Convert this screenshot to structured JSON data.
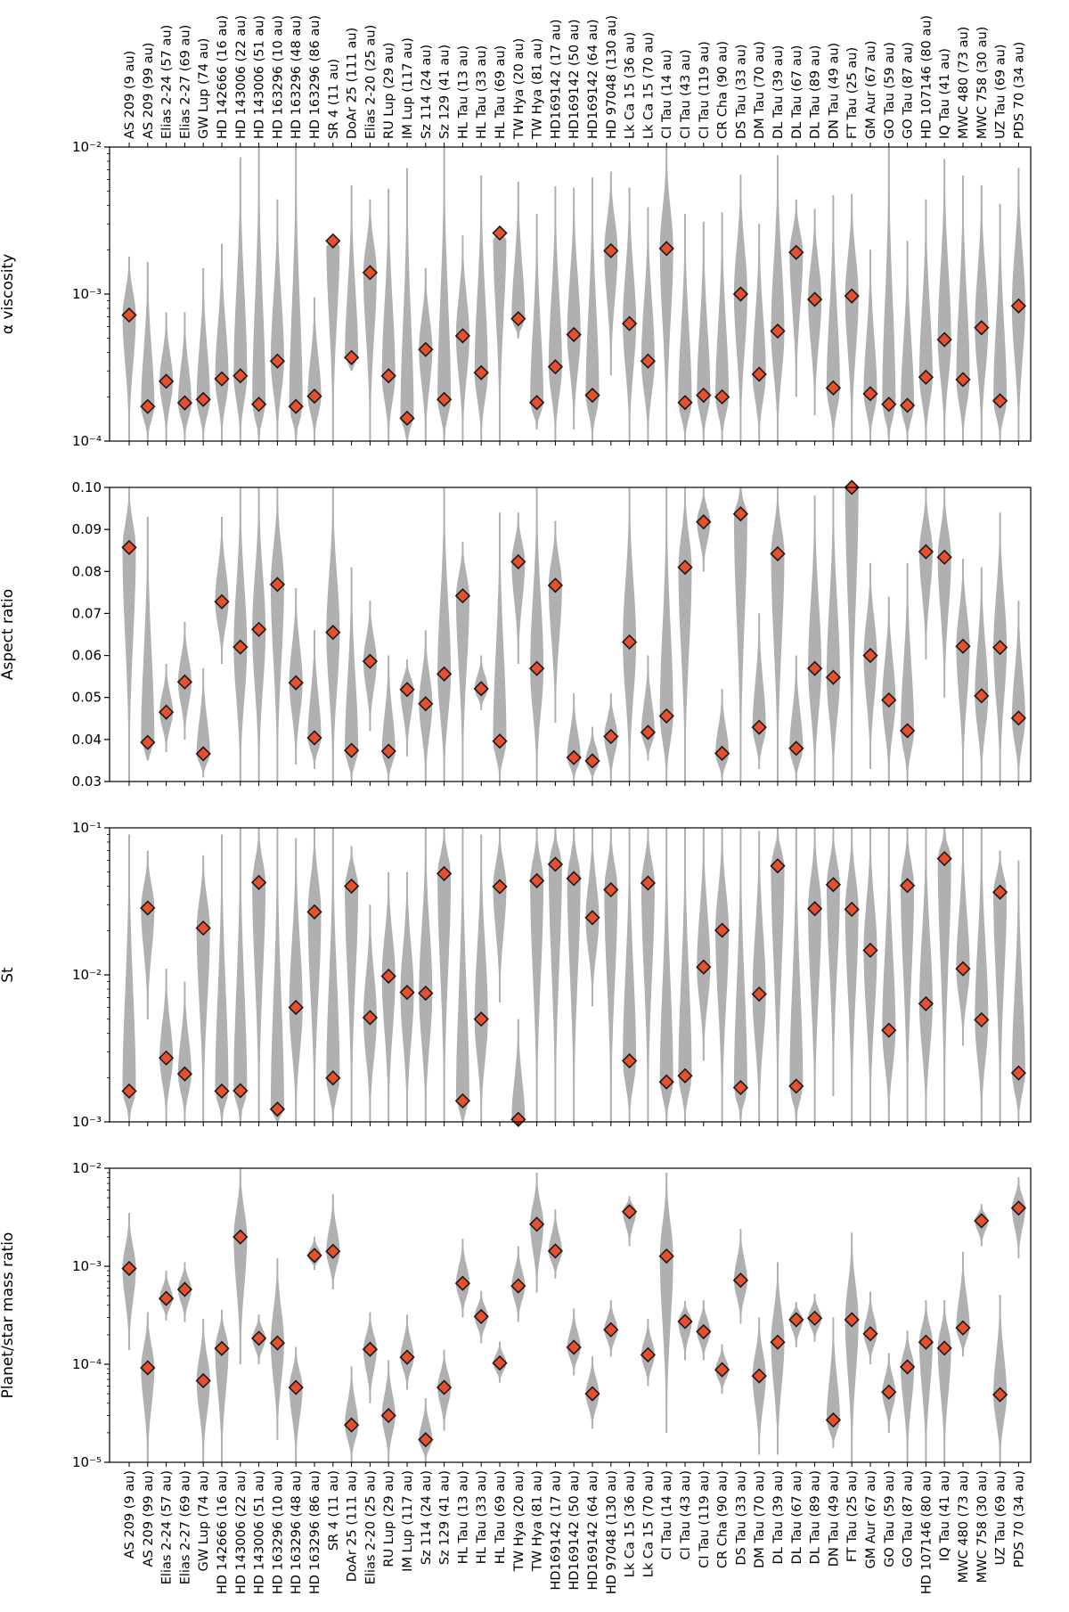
{
  "colors": {
    "violin": "#b0b0b0",
    "marker_fill": "#e8502d",
    "marker_edge": "#1a1a1a",
    "frame": "#000000"
  },
  "chart_data": [
    {
      "type": "violin",
      "ylabel": "α viscosity",
      "yscale": "log",
      "ylim": [
        0.0001,
        0.01
      ],
      "yticks": [
        {
          "value": 0.0001,
          "label": "10⁻⁴"
        },
        {
          "value": 0.001,
          "label": "10⁻³"
        },
        {
          "value": 0.01,
          "label": "10⁻²"
        }
      ],
      "category_labels_position": "top",
      "points": [
        0.00072,
        0.000172,
        0.000255,
        0.000182,
        0.000192,
        0.000265,
        0.000278,
        0.000178,
        0.00035,
        0.000172,
        0.000202,
        0.0023,
        0.00037,
        0.0014,
        0.000278,
        0.000143,
        0.00042,
        0.000192,
        0.00052,
        0.000292,
        0.0026,
        0.00068,
        0.000183,
        0.00032,
        0.00053,
        0.000205,
        0.00197,
        0.00063,
        0.00035,
        0.00204,
        0.000183,
        0.000205,
        0.0002,
        0.001,
        0.000285,
        0.00056,
        0.00192,
        0.00092,
        0.00023,
        0.00097,
        0.00021,
        0.000178,
        0.000175,
        0.000272,
        0.00049,
        0.000262,
        0.00059,
        0.000188,
        0.00083
      ],
      "ranges": [
        [
          0.0001,
          0.0018
        ],
        [
          0.0001,
          0.00165
        ],
        [
          0.0001,
          0.00075
        ],
        [
          0.0001,
          0.00075
        ],
        [
          0.0001,
          0.0015
        ],
        [
          0.0001,
          0.0022
        ],
        [
          0.0001,
          0.0085
        ],
        [
          0.0001,
          0.01
        ],
        [
          0.0001,
          0.0044
        ],
        [
          0.0001,
          0.01
        ],
        [
          0.0001,
          0.00095
        ],
        [
          0.0001,
          0.0024
        ],
        [
          0.0003,
          0.0055
        ],
        [
          0.0001,
          0.0044
        ],
        [
          0.0001,
          0.0052
        ],
        [
          0.0001,
          0.0072
        ],
        [
          0.0001,
          0.0015
        ],
        [
          0.0001,
          0.01
        ],
        [
          0.0001,
          0.0025
        ],
        [
          0.0001,
          0.0064
        ],
        [
          0.0001,
          0.0027
        ],
        [
          0.0005,
          0.0058
        ],
        [
          0.00012,
          0.0035
        ],
        [
          0.0001,
          0.0054
        ],
        [
          0.00012,
          0.0053
        ],
        [
          0.0001,
          0.0062
        ],
        [
          0.00028,
          0.0068
        ],
        [
          0.0001,
          0.0053
        ],
        [
          0.0001,
          0.0039
        ],
        [
          0.0001,
          0.01
        ],
        [
          0.0001,
          0.0035
        ],
        [
          0.0001,
          0.0031
        ],
        [
          0.0001,
          0.0036
        ],
        [
          0.0001,
          0.0065
        ],
        [
          0.0001,
          0.003
        ],
        [
          0.0001,
          0.0088
        ],
        [
          0.0002,
          0.0044
        ],
        [
          0.00015,
          0.0038
        ],
        [
          0.0001,
          0.0047
        ],
        [
          0.0001,
          0.0048
        ],
        [
          0.0001,
          0.002
        ],
        [
          0.0001,
          0.01
        ],
        [
          0.0001,
          0.0023
        ],
        [
          0.0001,
          0.0044
        ],
        [
          0.0001,
          0.0083
        ],
        [
          0.0001,
          0.0064
        ],
        [
          0.0001,
          0.0055
        ],
        [
          0.0001,
          0.0041
        ],
        [
          0.0001,
          0.0072
        ]
      ]
    },
    {
      "type": "violin",
      "ylabel": "Aspect ratio",
      "yscale": "linear",
      "ylim": [
        0.03,
        0.1
      ],
      "yticks": [
        {
          "value": 0.03,
          "label": "0.03"
        },
        {
          "value": 0.04,
          "label": "0.04"
        },
        {
          "value": 0.05,
          "label": "0.05"
        },
        {
          "value": 0.06,
          "label": "0.06"
        },
        {
          "value": 0.07,
          "label": "0.07"
        },
        {
          "value": 0.08,
          "label": "0.08"
        },
        {
          "value": 0.09,
          "label": "0.09"
        },
        {
          "value": 0.1,
          "label": "0.10"
        }
      ],
      "points": [
        0.0857,
        0.0393,
        0.0465,
        0.0537,
        0.0366,
        0.0728,
        0.062,
        0.0662,
        0.0769,
        0.0535,
        0.0404,
        0.0655,
        0.0374,
        0.0586,
        0.0372,
        0.0519,
        0.0485,
        0.0556,
        0.0742,
        0.0521,
        0.0396,
        0.0823,
        0.0569,
        0.0767,
        0.0357,
        0.0349,
        0.0407,
        0.0632,
        0.0417,
        0.0456,
        0.081,
        0.0918,
        0.0367,
        0.0937,
        0.0429,
        0.0842,
        0.0379,
        0.0569,
        0.0548,
        0.1,
        0.06,
        0.0494,
        0.0421,
        0.0847,
        0.0834,
        0.0622,
        0.0504,
        0.0619,
        0.0451
      ],
      "ranges": [
        [
          0.03,
          0.1
        ],
        [
          0.035,
          0.093
        ],
        [
          0.037,
          0.058
        ],
        [
          0.04,
          0.068
        ],
        [
          0.031,
          0.057
        ],
        [
          0.058,
          0.093
        ],
        [
          0.03,
          0.1
        ],
        [
          0.03,
          0.1
        ],
        [
          0.03,
          0.1
        ],
        [
          0.034,
          0.076
        ],
        [
          0.033,
          0.066
        ],
        [
          0.03,
          0.1
        ],
        [
          0.03,
          0.081
        ],
        [
          0.042,
          0.073
        ],
        [
          0.03,
          0.06
        ],
        [
          0.036,
          0.059
        ],
        [
          0.03,
          0.066
        ],
        [
          0.03,
          0.1
        ],
        [
          0.03,
          0.087
        ],
        [
          0.047,
          0.06
        ],
        [
          0.03,
          0.094
        ],
        [
          0.058,
          0.094
        ],
        [
          0.03,
          0.1
        ],
        [
          0.044,
          0.092
        ],
        [
          0.03,
          0.051
        ],
        [
          0.03,
          0.043
        ],
        [
          0.03,
          0.051
        ],
        [
          0.03,
          0.1
        ],
        [
          0.035,
          0.06
        ],
        [
          0.03,
          0.1
        ],
        [
          0.03,
          0.1
        ],
        [
          0.08,
          0.1
        ],
        [
          0.03,
          0.052
        ],
        [
          0.03,
          0.1
        ],
        [
          0.033,
          0.07
        ],
        [
          0.03,
          0.1
        ],
        [
          0.03,
          0.06
        ],
        [
          0.03,
          0.098
        ],
        [
          0.03,
          0.1
        ],
        [
          0.03,
          0.1
        ],
        [
          0.033,
          0.082
        ],
        [
          0.03,
          0.074
        ],
        [
          0.03,
          0.082
        ],
        [
          0.059,
          0.1
        ],
        [
          0.05,
          0.1
        ],
        [
          0.03,
          0.083
        ],
        [
          0.03,
          0.081
        ],
        [
          0.03,
          0.094
        ],
        [
          0.03,
          0.073
        ]
      ]
    },
    {
      "type": "violin",
      "ylabel": "St",
      "yscale": "log",
      "ylim": [
        0.001,
        0.1
      ],
      "yticks": [
        {
          "value": 0.001,
          "label": "10⁻³"
        },
        {
          "value": 0.01,
          "label": "10⁻²"
        },
        {
          "value": 0.1,
          "label": "10⁻¹"
        }
      ],
      "points": [
        0.00162,
        0.0285,
        0.00272,
        0.00212,
        0.0208,
        0.00162,
        0.00163,
        0.0425,
        0.00122,
        0.006,
        0.0268,
        0.00199,
        0.0401,
        0.00512,
        0.0098,
        0.0076,
        0.0075,
        0.0488,
        0.00139,
        0.005,
        0.0398,
        0.00104,
        0.0437,
        0.0565,
        0.0452,
        0.0245,
        0.0379,
        0.0026,
        0.0421,
        0.00187,
        0.00206,
        0.0113,
        0.0201,
        0.00171,
        0.0074,
        0.0551,
        0.00175,
        0.0282,
        0.0411,
        0.0279,
        0.0147,
        0.0042,
        0.0405,
        0.00636,
        0.0617,
        0.011,
        0.00495,
        0.0365,
        0.00215
      ],
      "ranges": [
        [
          0.001,
          0.09
        ],
        [
          0.005,
          0.07
        ],
        [
          0.001,
          0.011
        ],
        [
          0.001,
          0.009
        ],
        [
          0.001,
          0.065
        ],
        [
          0.001,
          0.09
        ],
        [
          0.001,
          0.1
        ],
        [
          0.001,
          0.1
        ],
        [
          0.001,
          0.1
        ],
        [
          0.001,
          0.085
        ],
        [
          0.001,
          0.1
        ],
        [
          0.001,
          0.1
        ],
        [
          0.001,
          0.075
        ],
        [
          0.001,
          0.03
        ],
        [
          0.001,
          0.05
        ],
        [
          0.001,
          0.05
        ],
        [
          0.001,
          0.1
        ],
        [
          0.001,
          0.1
        ],
        [
          0.001,
          0.1
        ],
        [
          0.001,
          0.09
        ],
        [
          0.0065,
          0.1
        ],
        [
          0.001,
          0.005
        ],
        [
          0.001,
          0.1
        ],
        [
          0.001,
          0.1
        ],
        [
          0.001,
          0.1
        ],
        [
          0.0061,
          0.1
        ],
        [
          0.001,
          0.1
        ],
        [
          0.001,
          0.1
        ],
        [
          0.001,
          0.1
        ],
        [
          0.001,
          0.1
        ],
        [
          0.001,
          0.1
        ],
        [
          0.0026,
          0.1
        ],
        [
          0.001,
          0.1
        ],
        [
          0.001,
          0.1
        ],
        [
          0.001,
          0.095
        ],
        [
          0.001,
          0.1
        ],
        [
          0.001,
          0.1
        ],
        [
          0.001,
          0.1
        ],
        [
          0.0015,
          0.1
        ],
        [
          0.001,
          0.1
        ],
        [
          0.001,
          0.1
        ],
        [
          0.001,
          0.1
        ],
        [
          0.001,
          0.1
        ],
        [
          0.001,
          0.1
        ],
        [
          0.001,
          0.1
        ],
        [
          0.0033,
          0.1
        ],
        [
          0.001,
          0.1
        ],
        [
          0.001,
          0.07
        ],
        [
          0.001,
          0.06
        ]
      ]
    },
    {
      "type": "violin",
      "ylabel": "Planet/star mass ratio",
      "yscale": "log",
      "ylim": [
        1e-05,
        0.01
      ],
      "yticks": [
        {
          "value": 1e-05,
          "label": "10⁻⁵"
        },
        {
          "value": 0.0001,
          "label": "10⁻⁴"
        },
        {
          "value": 0.001,
          "label": "10⁻³"
        },
        {
          "value": 0.01,
          "label": "10⁻²"
        }
      ],
      "category_labels_position": "bottom",
      "points": [
        0.00095,
        9.2e-05,
        0.00047,
        0.00058,
        6.8e-05,
        0.000145,
        0.00199,
        0.000184,
        0.000165,
        5.8e-05,
        0.00129,
        0.00142,
        2.4e-05,
        0.000142,
        3e-05,
        0.000118,
        1.7e-05,
        5.8e-05,
        0.00067,
        0.000307,
        0.000103,
        0.00063,
        0.00268,
        0.00143,
        0.000149,
        5e-05,
        0.000225,
        0.0036,
        0.000125,
        0.00127,
        0.000273,
        0.000215,
        8.8e-05,
        0.00072,
        7.6e-05,
        0.000168,
        0.000285,
        0.000295,
        2.7e-05,
        0.000285,
        0.000205,
        5.2e-05,
        9.4e-05,
        0.000168,
        0.000146,
        0.000235,
        0.00291,
        4.9e-05,
        0.00392
      ],
      "ranges": [
        [
          0.00014,
          0.0035
        ],
        [
          1e-05,
          0.00034
        ],
        [
          0.00028,
          0.0009
        ],
        [
          0.00027,
          0.0011
        ],
        [
          1e-05,
          0.00029
        ],
        [
          1e-05,
          0.00036
        ],
        [
          0.0001,
          0.01
        ],
        [
          0.0001,
          0.00032
        ],
        [
          1.7e-05,
          0.0012
        ],
        [
          1e-05,
          0.00015
        ],
        [
          0.00092,
          0.002
        ],
        [
          0.00058,
          0.0054
        ],
        [
          1e-05,
          9.5e-05
        ],
        [
          4e-05,
          0.00034
        ],
        [
          1e-05,
          0.00011
        ],
        [
          5.5e-05,
          0.00032
        ],
        [
          1e-05,
          4.5e-05
        ],
        [
          2.1e-05,
          0.00014
        ],
        [
          0.0003,
          0.0019
        ],
        [
          0.000165,
          0.00056
        ],
        [
          6.5e-05,
          0.00017
        ],
        [
          0.00027,
          0.0016
        ],
        [
          0.00054,
          0.009
        ],
        [
          0.00075,
          0.0038
        ],
        [
          7.7e-05,
          0.00037
        ],
        [
          2.2e-05,
          0.00012
        ],
        [
          0.00012,
          0.00045
        ],
        [
          0.0016,
          0.0052
        ],
        [
          6e-05,
          0.00029
        ],
        [
          2e-05,
          0.009
        ],
        [
          0.00011,
          0.00044
        ],
        [
          0.00011,
          0.00045
        ],
        [
          5e-05,
          0.00016
        ],
        [
          0.00026,
          0.0024
        ],
        [
          1.2e-05,
          0.0003
        ],
        [
          1.2e-05,
          0.0011
        ],
        [
          0.00015,
          0.00043
        ],
        [
          0.00017,
          0.00052
        ],
        [
          1.4e-05,
          0.0003
        ],
        [
          1e-05,
          0.0022
        ],
        [
          0.0001,
          0.00055
        ],
        [
          2e-05,
          0.00013
        ],
        [
          1e-05,
          0.00022
        ],
        [
          1e-05,
          0.00045
        ],
        [
          1e-05,
          0.00045
        ],
        [
          0.00012,
          0.0014
        ],
        [
          0.0016,
          0.0043
        ],
        [
          1e-05,
          0.00051
        ],
        [
          0.0012,
          0.0081
        ]
      ]
    }
  ],
  "categories": [
    "AS 209 (9 au)",
    "AS 209 (99 au)",
    "Elias 2-24 (57 au)",
    "Elias 2-27 (69 au)",
    "GW Lup (74 au)",
    "HD 142666 (16 au)",
    "HD 143006 (22 au)",
    "HD 143006 (51 au)",
    "HD 163296 (10 au)",
    "HD 163296 (48 au)",
    "HD 163296 (86 au)",
    "SR 4 (11 au)",
    "DoAr 25 (111 au)",
    "Elias 2-20 (25 au)",
    "RU Lup (29 au)",
    "IM Lup (117 au)",
    "Sz 114 (24 au)",
    "Sz 129 (41 au)",
    "HL Tau (13 au)",
    "HL Tau (33 au)",
    "HL Tau (69 au)",
    "TW Hya (20 au)",
    "TW Hya (81 au)",
    "HD169142 (17 au)",
    "HD169142 (50 au)",
    "HD169142 (64 au)",
    "HD 97048 (130 au)",
    "Lk Ca 15 (36 au)",
    "Lk Ca 15 (70 au)",
    "CI Tau (14 au)",
    "CI Tau (43 au)",
    "CI Tau (119 au)",
    "CR Cha (90 au)",
    "DS Tau (33 au)",
    "DM Tau (70 au)",
    "DL Tau (39 au)",
    "DL Tau (67 au)",
    "DL Tau (89 au)",
    "DN Tau (49 au)",
    "FT Tau  (25 au)",
    "GM Aur (67 au)",
    "GO Tau (59 au)",
    "GO Tau (87 au)",
    "HD 107146 (80 au)",
    "IQ Tau (41 au)",
    "MWC 480 (73 au)",
    "MWC 758 (30 au)",
    "UZ Tau (69 au)",
    "PDS 70 (34 au)"
  ]
}
